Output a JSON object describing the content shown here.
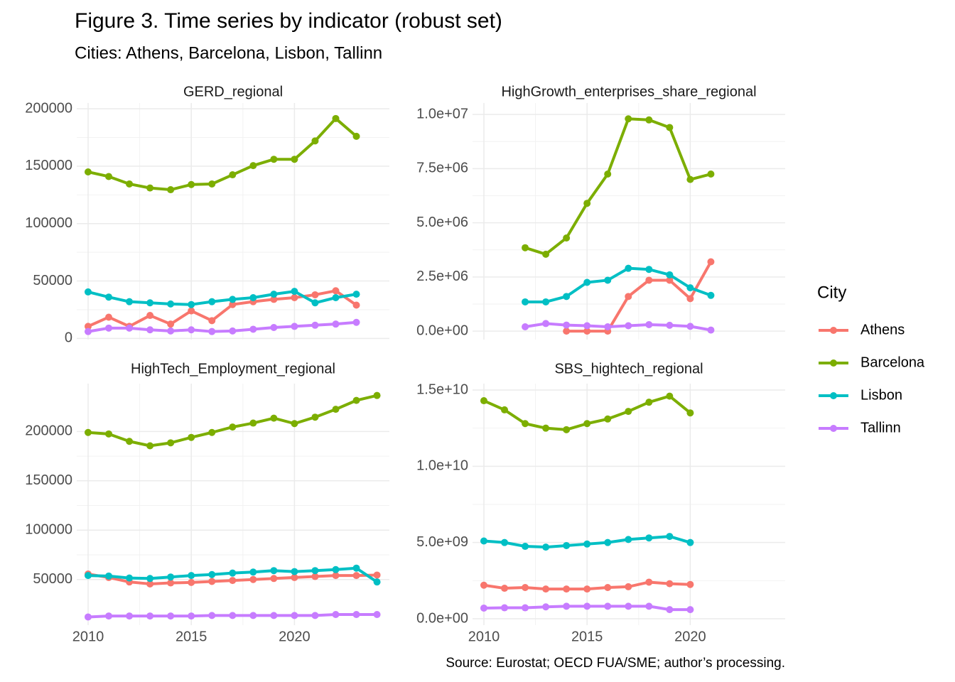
{
  "title": "Figure 3. Time series by indicator (robust set)",
  "subtitle": "Cities: Athens, Barcelona, Lisbon, Tallinn",
  "caption": "Source: Eurostat; OECD FUA/SME; author’s processing.",
  "legend_title": "City",
  "chart_data": [
    {
      "type": "line",
      "title": "GERD_regional",
      "x": [
        2010,
        2011,
        2012,
        2013,
        2014,
        2015,
        2016,
        2017,
        2018,
        2019,
        2020,
        2021,
        2022,
        2023
      ],
      "xlim": [
        2009.45,
        2024.6
      ],
      "xticks": [
        2010,
        2015,
        2020
      ],
      "ylim": [
        -1000,
        205000
      ],
      "yticks": [
        0,
        50000,
        100000,
        150000,
        200000
      ],
      "grid": true,
      "series": [
        {
          "name": "Athens",
          "color": "#F8766D",
          "values": [
            10500,
            18500,
            10500,
            20000,
            12500,
            24000,
            15500,
            29500,
            32000,
            34000,
            35500,
            38000,
            41500,
            29000
          ]
        },
        {
          "name": "Barcelona",
          "color": "#7CAE00",
          "values": [
            145000,
            141000,
            134500,
            131000,
            129500,
            134000,
            134500,
            142500,
            150500,
            156000,
            156000,
            172000,
            191500,
            176000
          ]
        },
        {
          "name": "Lisbon",
          "color": "#00BFC4",
          "values": [
            40500,
            36000,
            32000,
            31000,
            30000,
            29500,
            32000,
            34000,
            35500,
            38500,
            41000,
            31000,
            35500,
            38500
          ]
        },
        {
          "name": "Tallinn",
          "color": "#C77CFF",
          "values": [
            6000,
            9000,
            9000,
            7500,
            6500,
            7500,
            6000,
            6500,
            8000,
            9500,
            10500,
            11500,
            12500,
            14000
          ]
        }
      ]
    },
    {
      "type": "line",
      "title": "HighGrowth_enterprises_share_regional",
      "x": [
        2012,
        2013,
        2014,
        2015,
        2016,
        2017,
        2018,
        2019,
        2020,
        2021
      ],
      "xlim": [
        2009.45,
        2024.6
      ],
      "xticks": [
        2010,
        2015,
        2020
      ],
      "ylim": [
        -390000,
        10530000
      ],
      "yticks": [
        {
          "value": 0,
          "label": "0.0e+00"
        },
        {
          "value": 2500000,
          "label": "2.5e+06"
        },
        {
          "value": 5000000,
          "label": "5.0e+06"
        },
        {
          "value": 7500000,
          "label": "7.5e+06"
        },
        {
          "value": 10000000,
          "label": "1.0e+07"
        }
      ],
      "grid": true,
      "series": [
        {
          "name": "Athens",
          "color": "#F8766D",
          "values": [
            null,
            null,
            0,
            0,
            0,
            1600000,
            2350000,
            2350000,
            1500000,
            3200000
          ]
        },
        {
          "name": "Barcelona",
          "color": "#7CAE00",
          "values": [
            3850000,
            3550000,
            4300000,
            5900000,
            7250000,
            9800000,
            9750000,
            9400000,
            7000000,
            7250000
          ]
        },
        {
          "name": "Lisbon",
          "color": "#00BFC4",
          "values": [
            1350000,
            1350000,
            1600000,
            2250000,
            2350000,
            2900000,
            2850000,
            2600000,
            2000000,
            1650000
          ]
        },
        {
          "name": "Tallinn",
          "color": "#C77CFF",
          "values": [
            200000,
            350000,
            280000,
            250000,
            200000,
            250000,
            300000,
            270000,
            220000,
            50000
          ]
        }
      ]
    },
    {
      "type": "line",
      "title": "HighTech_Employment_regional",
      "x": [
        2010,
        2011,
        2012,
        2013,
        2014,
        2015,
        2016,
        2017,
        2018,
        2019,
        2020,
        2021,
        2022,
        2023,
        2024
      ],
      "xlim": [
        2009.45,
        2024.6
      ],
      "xticks": [
        2010,
        2015,
        2020
      ],
      "ylim": [
        3700,
        248500
      ],
      "yticks": [
        50000,
        100000,
        150000,
        200000
      ],
      "grid": true,
      "series": [
        {
          "name": "Athens",
          "color": "#F8766D",
          "values": [
            55500,
            52000,
            47500,
            45500,
            46500,
            47000,
            48000,
            49000,
            50000,
            51000,
            52000,
            53000,
            54000,
            54000,
            54500
          ]
        },
        {
          "name": "Barcelona",
          "color": "#7CAE00",
          "values": [
            199000,
            197500,
            190000,
            185500,
            188500,
            194000,
            199000,
            204500,
            208500,
            213500,
            208000,
            214500,
            222500,
            231500,
            236500
          ]
        },
        {
          "name": "Lisbon",
          "color": "#00BFC4",
          "values": [
            54000,
            53500,
            51500,
            51000,
            52500,
            54000,
            55000,
            56500,
            57500,
            59000,
            58000,
            59000,
            60000,
            61500,
            47500
          ]
        },
        {
          "name": "Tallinn",
          "color": "#C77CFF",
          "values": [
            12000,
            13000,
            13000,
            13000,
            13000,
            13000,
            13500,
            13500,
            13500,
            13500,
            13500,
            13500,
            14500,
            14500,
            14500
          ]
        }
      ]
    },
    {
      "type": "line",
      "title": "SBS_hightech_regional",
      "x": [
        2010,
        2011,
        2012,
        2013,
        2014,
        2015,
        2016,
        2017,
        2018,
        2019,
        2020
      ],
      "xlim": [
        2009.45,
        2024.6
      ],
      "xticks": [
        2010,
        2015,
        2020
      ],
      "ylim": [
        -420000000,
        15420000000
      ],
      "yticks": [
        {
          "value": 0,
          "label": "0.0e+00"
        },
        {
          "value": 5000000000,
          "label": "5.0e+09"
        },
        {
          "value": 10000000000,
          "label": "1.0e+10"
        },
        {
          "value": 15000000000,
          "label": "1.5e+10"
        }
      ],
      "grid": true,
      "series": [
        {
          "name": "Athens",
          "color": "#F8766D",
          "values": [
            2200000000,
            2000000000,
            2050000000,
            1950000000,
            1950000000,
            1950000000,
            2050000000,
            2100000000,
            2400000000,
            2300000000,
            2250000000
          ]
        },
        {
          "name": "Barcelona",
          "color": "#7CAE00",
          "values": [
            14300000000,
            13700000000,
            12800000000,
            12500000000,
            12400000000,
            12800000000,
            13100000000,
            13600000000,
            14200000000,
            14600000000,
            13500000000
          ]
        },
        {
          "name": "Lisbon",
          "color": "#00BFC4",
          "values": [
            5100000000,
            5000000000,
            4750000000,
            4700000000,
            4800000000,
            4900000000,
            5000000000,
            5200000000,
            5300000000,
            5400000000,
            5000000000
          ]
        },
        {
          "name": "Tallinn",
          "color": "#C77CFF",
          "values": [
            700000000,
            720000000,
            720000000,
            780000000,
            820000000,
            820000000,
            820000000,
            820000000,
            820000000,
            600000000,
            600000000
          ]
        }
      ]
    }
  ]
}
